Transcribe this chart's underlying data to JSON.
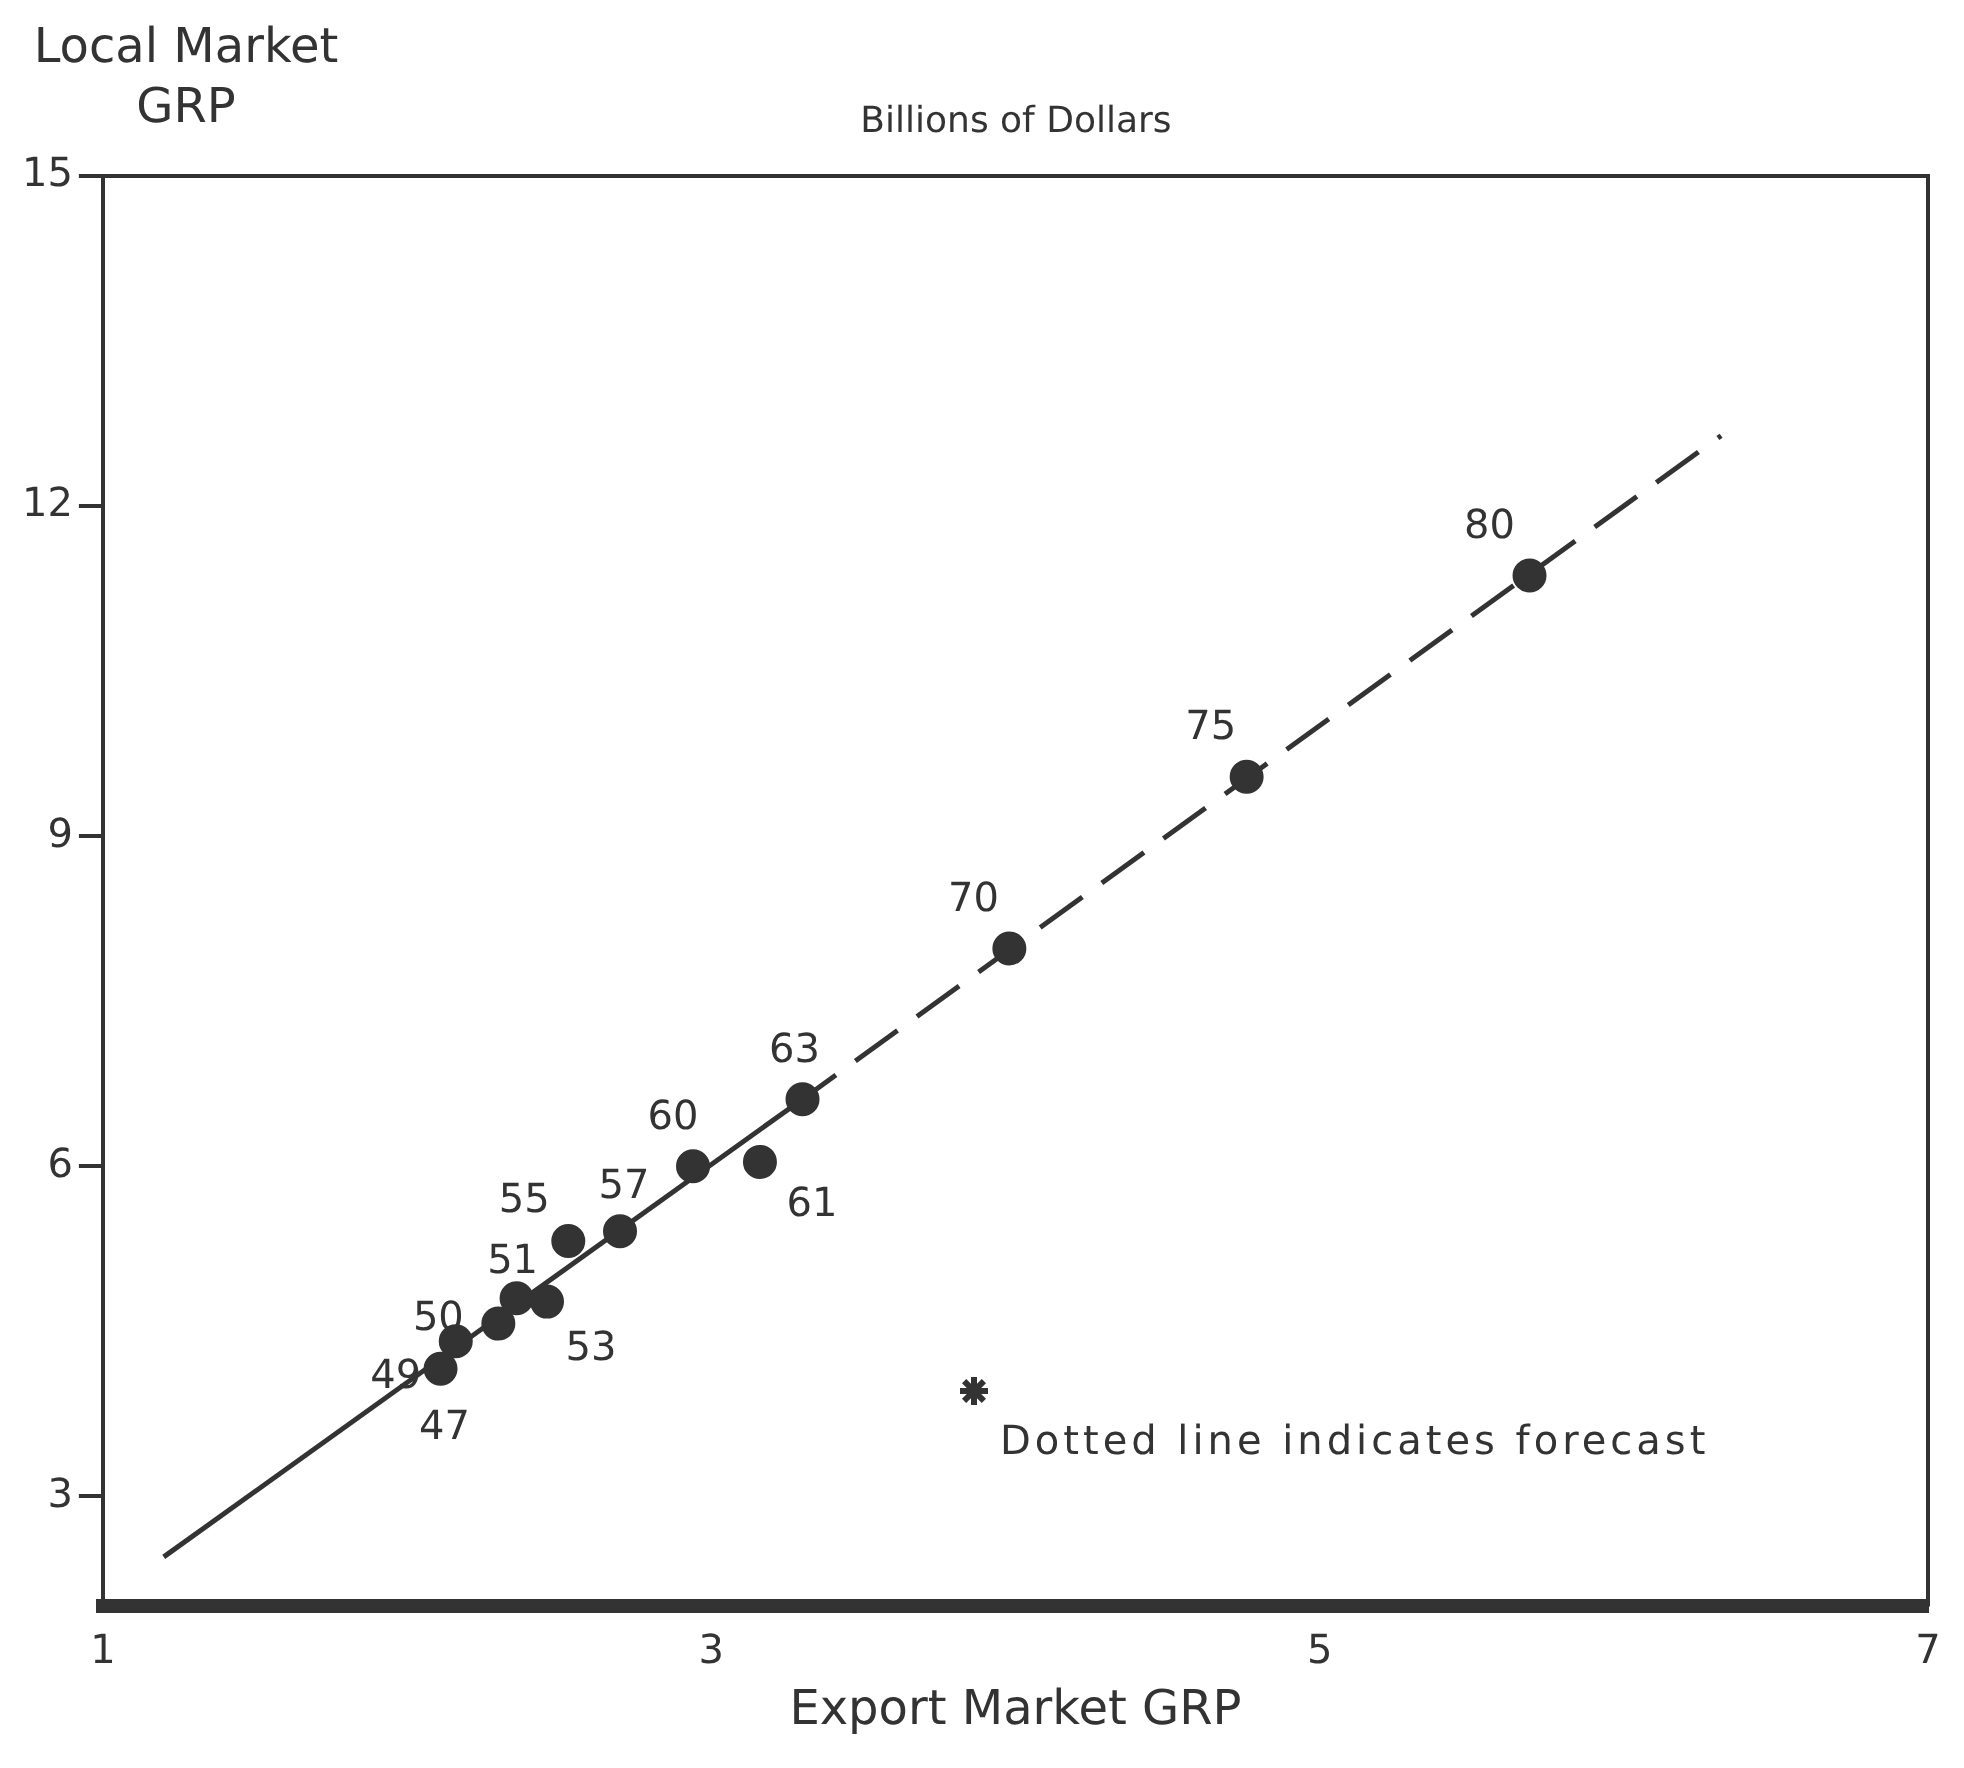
{
  "chart_data": {
    "type": "scatter",
    "title": "Billions of Dollars",
    "xlabel": "Export Market GRP",
    "ylabel": "Local Market GRP",
    "xlim": [
      1,
      7
    ],
    "xticks": [
      1,
      3,
      5,
      7
    ],
    "ylim": [
      2,
      15
    ],
    "yticks": [
      3,
      6,
      9,
      12,
      15
    ],
    "grid": false,
    "legend": false,
    "series": [
      {
        "type": "scatter",
        "marker": "circle",
        "color": "#333333",
        "x": [
          2.11,
          2.16,
          2.3,
          2.36,
          2.46,
          2.53,
          2.7,
          2.94,
          3.16,
          3.3,
          3.98,
          4.76,
          5.69
        ],
        "values": [
          4.16,
          4.41,
          4.57,
          4.8,
          4.77,
          5.32,
          5.41,
          6.0,
          6.04,
          6.61,
          7.98,
          9.54,
          11.37
        ]
      },
      {
        "type": "line",
        "marker": "none",
        "line_style": "solid",
        "color": "#333333",
        "x": [
          1.2,
          3.3
        ],
        "values": [
          2.45,
          6.61
        ]
      },
      {
        "type": "line",
        "marker": "none",
        "line_style": "dashed",
        "color": "#333333",
        "x": [
          3.3,
          6.32
        ],
        "values": [
          6.61,
          12.64
        ]
      }
    ],
    "annotations": [
      {
        "text": "47",
        "x": 2.11,
        "y": 4.16
      },
      {
        "text": "49",
        "x": 2.16,
        "y": 4.41
      },
      {
        "text": "50",
        "x": 2.3,
        "y": 4.57
      },
      {
        "text": "51",
        "x": 2.36,
        "y": 4.8
      },
      {
        "text": "53",
        "x": 2.46,
        "y": 4.77
      },
      {
        "text": "55",
        "x": 2.53,
        "y": 5.32
      },
      {
        "text": "57",
        "x": 2.7,
        "y": 5.41
      },
      {
        "text": "60",
        "x": 2.94,
        "y": 6.0
      },
      {
        "text": "61",
        "x": 3.16,
        "y": 6.04
      },
      {
        "text": "63",
        "x": 3.3,
        "y": 6.61
      },
      {
        "text": "70",
        "x": 3.98,
        "y": 7.98
      },
      {
        "text": "75",
        "x": 4.76,
        "y": 9.54
      },
      {
        "text": "80",
        "x": 5.69,
        "y": 11.37
      },
      "Dotted line indicates forecast"
    ]
  }
}
